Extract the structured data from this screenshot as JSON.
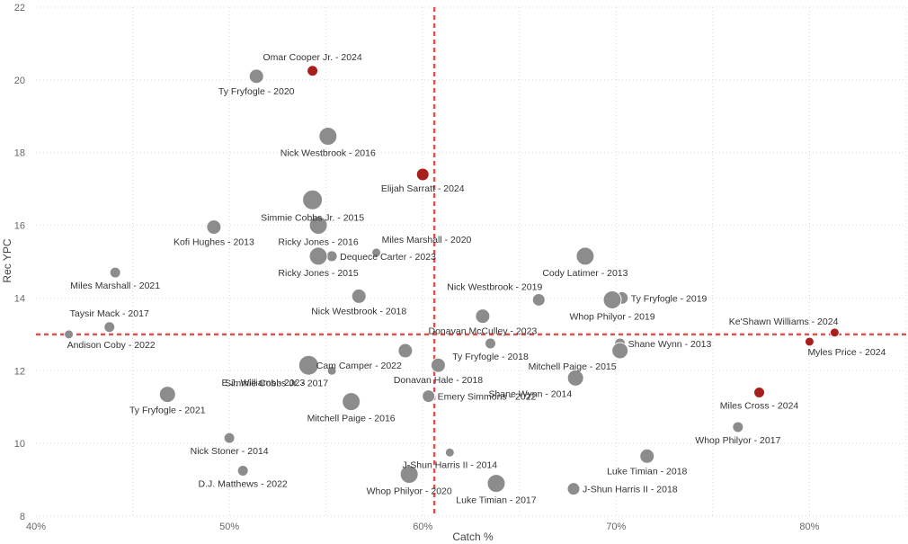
{
  "chart_data": {
    "type": "scatter",
    "title": "",
    "xlabel": "Catch %",
    "ylabel": "Rec YPC",
    "xlim": [
      0.4,
      0.85
    ],
    "ylim": [
      8,
      22
    ],
    "x_ticks": [
      0.4,
      0.5,
      0.6,
      0.7,
      0.8
    ],
    "x_tick_labels": [
      "40%",
      "50%",
      "60%",
      "70%",
      "80%"
    ],
    "y_ticks": [
      8,
      10,
      12,
      14,
      16,
      18,
      20,
      22
    ],
    "y_tick_labels": [
      "8",
      "10",
      "12",
      "14",
      "16",
      "18",
      "20",
      "22"
    ],
    "grid": true,
    "reference_lines": {
      "x": 0.606,
      "y": 13.0
    },
    "colors": {
      "default": "#8c8c8c",
      "highlight": "#a8201e",
      "reference": "#d9534f"
    },
    "points": [
      {
        "label": "Omar Cooper Jr. - 2024",
        "x": 0.543,
        "y": 20.25,
        "size": 6,
        "highlight": true,
        "label_pos": "above"
      },
      {
        "label": "Ty Fryfogle - 2020",
        "x": 0.514,
        "y": 20.1,
        "size": 8,
        "highlight": false,
        "label_pos": "below"
      },
      {
        "label": "Nick Westbrook - 2016",
        "x": 0.551,
        "y": 18.45,
        "size": 10,
        "highlight": false,
        "label_pos": "below"
      },
      {
        "label": "Elijah Sarratt - 2024",
        "x": 0.6,
        "y": 17.4,
        "size": 7,
        "highlight": true,
        "label_pos": "below"
      },
      {
        "label": "Simmie Cobbs Jr. - 2015",
        "x": 0.543,
        "y": 16.7,
        "size": 11,
        "highlight": false,
        "label_pos": "below"
      },
      {
        "label": "Kofi Hughes - 2013",
        "x": 0.492,
        "y": 15.95,
        "size": 8,
        "highlight": false,
        "label_pos": "below"
      },
      {
        "label": "Ricky Jones - 2016",
        "x": 0.546,
        "y": 16.0,
        "size": 10,
        "highlight": false,
        "label_pos": "below"
      },
      {
        "label": "Miles Marshall - 2020",
        "x": 0.576,
        "y": 15.25,
        "size": 5,
        "highlight": false,
        "label_pos": "above-right"
      },
      {
        "label": "Dequece Carter - 2023",
        "x": 0.553,
        "y": 15.15,
        "size": 6,
        "highlight": false,
        "label_pos": "right"
      },
      {
        "label": "Ricky Jones - 2015",
        "x": 0.546,
        "y": 15.15,
        "size": 10,
        "highlight": false,
        "label_pos": "below"
      },
      {
        "label": "Cody Latimer - 2013",
        "x": 0.684,
        "y": 15.15,
        "size": 10,
        "highlight": false,
        "label_pos": "below"
      },
      {
        "label": "Miles Marshall - 2021",
        "x": 0.441,
        "y": 14.7,
        "size": 6,
        "highlight": false,
        "label_pos": "below"
      },
      {
        "label": "Nick Westbrook - 2019",
        "x": 0.66,
        "y": 13.95,
        "size": 7,
        "highlight": false,
        "label_pos": "above-left"
      },
      {
        "label": "Ty Fryfogle - 2019",
        "x": 0.703,
        "y": 14.0,
        "size": 7,
        "highlight": false,
        "label_pos": "right"
      },
      {
        "label": "Nick Westbrook - 2018",
        "x": 0.567,
        "y": 14.05,
        "size": 8,
        "highlight": false,
        "label_pos": "below"
      },
      {
        "label": "Whop Philyor - 2019",
        "x": 0.698,
        "y": 13.95,
        "size": 10,
        "highlight": false,
        "label_pos": "below"
      },
      {
        "label": "Taysir Mack - 2017",
        "x": 0.438,
        "y": 13.2,
        "size": 6,
        "highlight": false,
        "label_pos": "above"
      },
      {
        "label": "Donavan McCulley - 2023",
        "x": 0.631,
        "y": 13.5,
        "size": 8,
        "highlight": false,
        "label_pos": "below"
      },
      {
        "label": "Ke'Shawn Williams - 2024",
        "x": 0.813,
        "y": 13.05,
        "size": 5,
        "highlight": true,
        "label_pos": "above-left"
      },
      {
        "label": "Andison Coby - 2022",
        "x": 0.417,
        "y": 13.0,
        "size": 5,
        "highlight": false,
        "label_pos": "below-right"
      },
      {
        "label": "Myles Price - 2024",
        "x": 0.8,
        "y": 12.8,
        "size": 5,
        "highlight": true,
        "label_pos": "below-right"
      },
      {
        "label": "Shane Wynn - 2013",
        "x": 0.702,
        "y": 12.75,
        "size": 6,
        "highlight": false,
        "label_pos": "right"
      },
      {
        "label": "Ty Fryfogle - 2018",
        "x": 0.635,
        "y": 12.75,
        "size": 6,
        "highlight": false,
        "label_pos": "below"
      },
      {
        "label": "Mitchell Paige - 2015",
        "x": 0.702,
        "y": 12.55,
        "size": 9,
        "highlight": false,
        "label_pos": "below-left"
      },
      {
        "label": "Cam Camper - 2022",
        "x": 0.591,
        "y": 12.55,
        "size": 8,
        "highlight": false,
        "label_pos": "below-left"
      },
      {
        "label": "E.J. Williams - 2023",
        "x": 0.541,
        "y": 12.15,
        "size": 11,
        "highlight": false,
        "label_pos": "below-left"
      },
      {
        "label": "Simmie Cobbs Jr. - 2017",
        "x": 0.553,
        "y": 12.0,
        "size": 5,
        "highlight": false,
        "label_pos": "below-left"
      },
      {
        "label": "Donavan Hale - 2018",
        "x": 0.608,
        "y": 12.15,
        "size": 8,
        "highlight": false,
        "label_pos": "below"
      },
      {
        "label": "Shane Wynn - 2014",
        "x": 0.679,
        "y": 11.8,
        "size": 9,
        "highlight": false,
        "label_pos": "below-left"
      },
      {
        "label": "Emery Simmons - 2022",
        "x": 0.603,
        "y": 11.3,
        "size": 7,
        "highlight": false,
        "label_pos": "right"
      },
      {
        "label": "Ty Fryfogle - 2021",
        "x": 0.468,
        "y": 11.35,
        "size": 9,
        "highlight": false,
        "label_pos": "below"
      },
      {
        "label": "Mitchell Paige - 2016",
        "x": 0.563,
        "y": 11.15,
        "size": 10,
        "highlight": false,
        "label_pos": "below"
      },
      {
        "label": "Miles Cross - 2024",
        "x": 0.774,
        "y": 11.4,
        "size": 6,
        "highlight": true,
        "label_pos": "below"
      },
      {
        "label": "Whop Philyor - 2017",
        "x": 0.763,
        "y": 10.45,
        "size": 6,
        "highlight": false,
        "label_pos": "below"
      },
      {
        "label": "Nick Stoner - 2014",
        "x": 0.5,
        "y": 10.15,
        "size": 6,
        "highlight": false,
        "label_pos": "below"
      },
      {
        "label": "J-Shun Harris II - 2014",
        "x": 0.614,
        "y": 9.75,
        "size": 5,
        "highlight": false,
        "label_pos": "below"
      },
      {
        "label": "Luke Timian - 2018",
        "x": 0.716,
        "y": 9.65,
        "size": 8,
        "highlight": false,
        "label_pos": "below"
      },
      {
        "label": "D.J. Matthews - 2022",
        "x": 0.507,
        "y": 9.25,
        "size": 6,
        "highlight": false,
        "label_pos": "below"
      },
      {
        "label": "Whop Philyor - 2020",
        "x": 0.593,
        "y": 9.15,
        "size": 10,
        "highlight": false,
        "label_pos": "below"
      },
      {
        "label": "Luke Timian - 2017",
        "x": 0.638,
        "y": 8.9,
        "size": 10,
        "highlight": false,
        "label_pos": "below"
      },
      {
        "label": "J-Shun Harris II - 2018",
        "x": 0.678,
        "y": 8.75,
        "size": 7,
        "highlight": false,
        "label_pos": "right"
      }
    ]
  }
}
